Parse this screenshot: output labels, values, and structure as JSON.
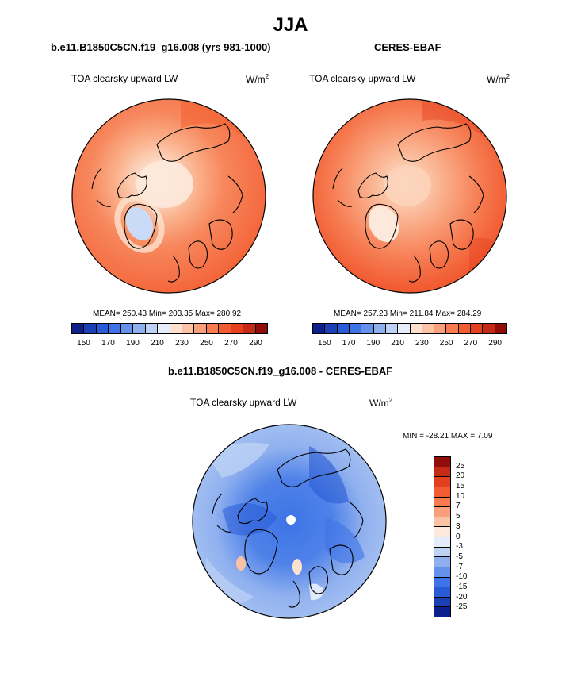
{
  "figure": {
    "title": "JJA"
  },
  "panels": {
    "model": {
      "title": "b.e11.B1850C5CN.f19_g16.008 (yrs 981-1000)",
      "variable": "TOA clearsky upward LW",
      "units_base": "W/m",
      "units_exp": "2",
      "stats": "MEAN= 250.43  Min= 203.35  Max= 280.92"
    },
    "obs": {
      "title": "CERES-EBAF",
      "variable": "TOA clearsky upward LW",
      "units_base": "W/m",
      "units_exp": "2",
      "stats": "MEAN= 257.23  Min= 211.84  Max= 284.29"
    },
    "diff": {
      "title": "b.e11.B1850C5CN.f19_g16.008 - CERES-EBAF",
      "variable": "TOA clearsky upward LW",
      "units_base": "W/m",
      "units_exp": "2",
      "stats": "MIN = -28.21 MAX =   7.09"
    }
  },
  "colorbars": {
    "abs_ticks": [
      "150",
      "170",
      "190",
      "210",
      "230",
      "250",
      "270",
      "290"
    ],
    "abs_colors": [
      "#0d1f8a",
      "#1b3fb5",
      "#2a5bd6",
      "#3d73e6",
      "#6491ea",
      "#8fb0ef",
      "#bdd2f5",
      "#e7eefa",
      "#fde2d0",
      "#fbc2a3",
      "#f9a07a",
      "#f67b51",
      "#f25c33",
      "#e4401f",
      "#c42a14",
      "#8f0e0a"
    ],
    "diff_ticks": [
      "25",
      "20",
      "15",
      "10",
      "7",
      "5",
      "3",
      "0",
      "-3",
      "-5",
      "-7",
      "-10",
      "-15",
      "-20",
      "-25"
    ],
    "diff_colors": [
      "#8f0e0a",
      "#c42a14",
      "#e4401f",
      "#f25c33",
      "#f67b51",
      "#f9a07a",
      "#fbc2a3",
      "#fde9dc",
      "#e3ecfa",
      "#bdd2f5",
      "#8fb0ef",
      "#6491ea",
      "#3d73e6",
      "#2a5bd6",
      "#1b3fb5",
      "#0d1f8a"
    ]
  },
  "chart_data": [
    {
      "type": "heatmap",
      "title": "b.e11.B1850C5CN.f19_g16.008 (yrs 981-1000)",
      "subtitle": "TOA clearsky upward LW",
      "units": "W/m2",
      "projection": "north polar stereographic",
      "season": "JJA",
      "colorbar_levels": [
        150,
        160,
        170,
        180,
        190,
        200,
        210,
        220,
        230,
        240,
        250,
        260,
        270,
        280,
        290
      ],
      "colorbar_tick_labels": [
        150,
        170,
        190,
        210,
        230,
        250,
        270,
        290
      ],
      "mean": 250.43,
      "min": 203.35,
      "max": 280.92
    },
    {
      "type": "heatmap",
      "title": "CERES-EBAF",
      "subtitle": "TOA clearsky upward LW",
      "units": "W/m2",
      "projection": "north polar stereographic",
      "season": "JJA",
      "colorbar_levels": [
        150,
        160,
        170,
        180,
        190,
        200,
        210,
        220,
        230,
        240,
        250,
        260,
        270,
        280,
        290
      ],
      "colorbar_tick_labels": [
        150,
        170,
        190,
        210,
        230,
        250,
        270,
        290
      ],
      "mean": 257.23,
      "min": 211.84,
      "max": 284.29
    },
    {
      "type": "heatmap",
      "title": "b.e11.B1850C5CN.f19_g16.008 - CERES-EBAF",
      "subtitle": "TOA clearsky upward LW",
      "units": "W/m2",
      "projection": "north polar stereographic",
      "season": "JJA",
      "colorbar_levels": [
        -25,
        -20,
        -15,
        -10,
        -7,
        -5,
        -3,
        0,
        3,
        5,
        7,
        10,
        15,
        20,
        25
      ],
      "min": -28.21,
      "max": 7.09
    }
  ]
}
